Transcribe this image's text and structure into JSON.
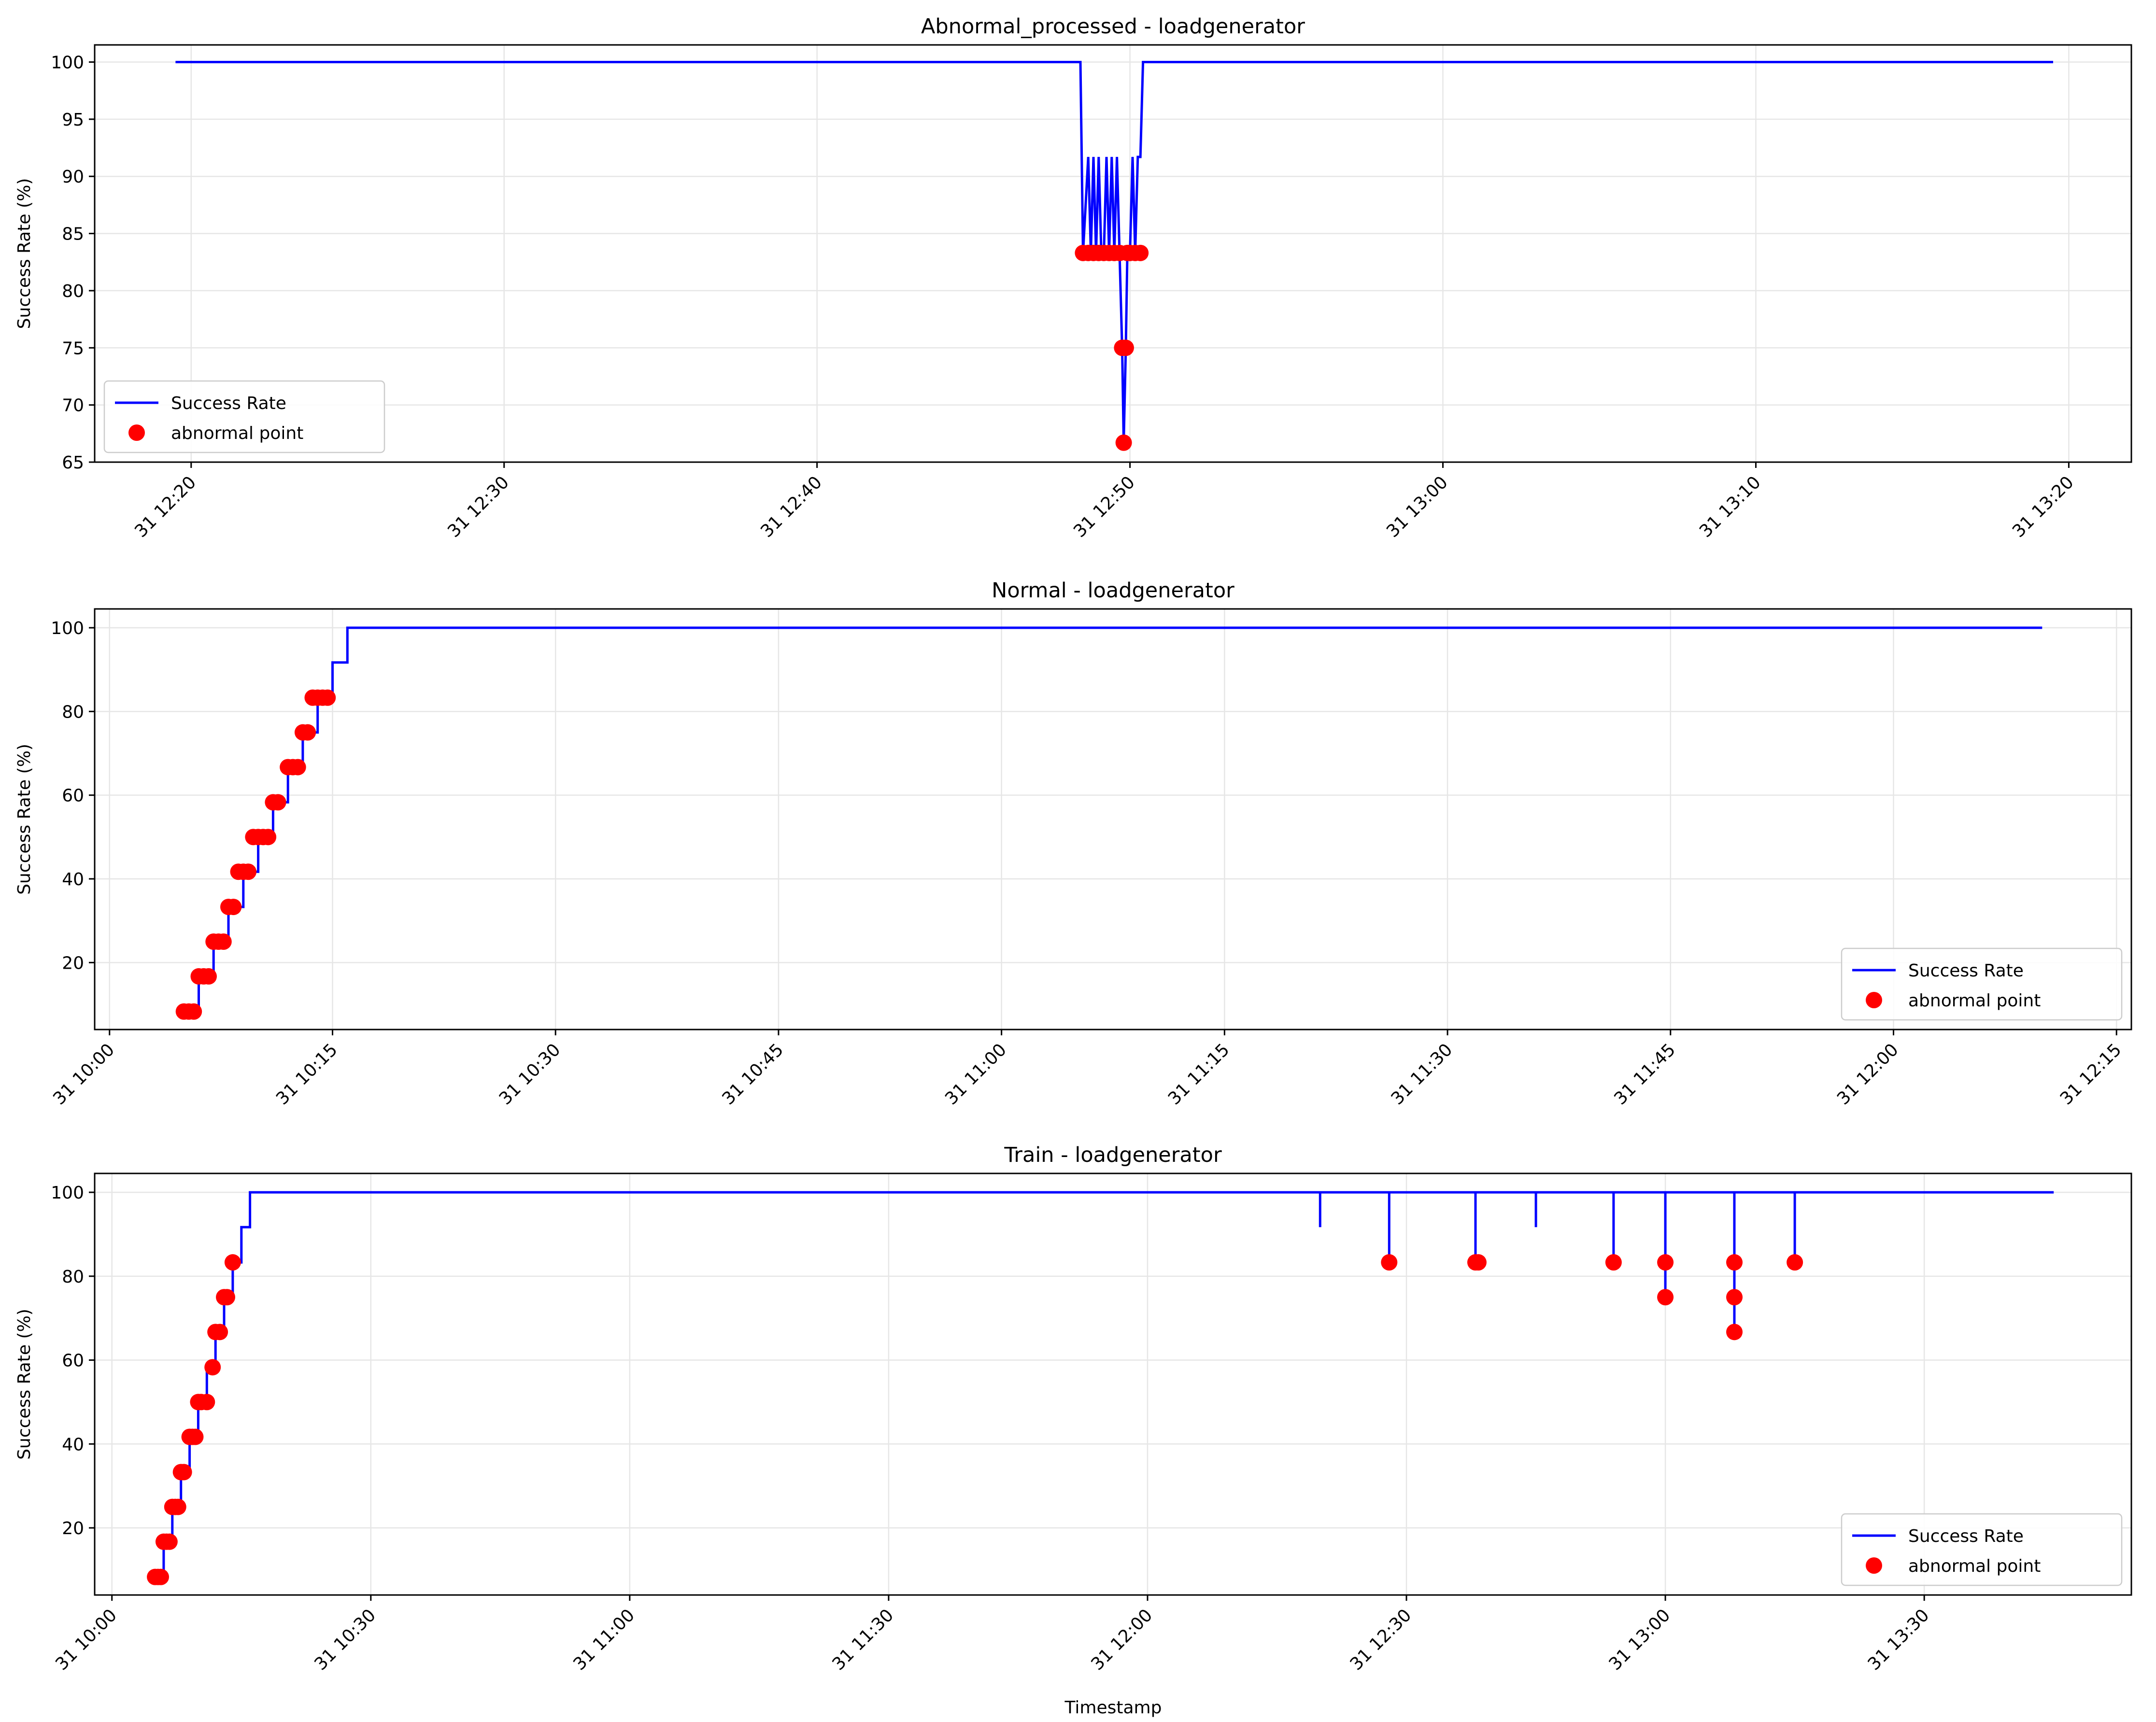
{
  "figure": {
    "background": "#ffffff"
  },
  "colors": {
    "line": "#0000ff",
    "marker": "#ff0000",
    "grid": "#e6e6e6",
    "axis": "#000000"
  },
  "xlabel": "Timestamp",
  "chart_data": [
    {
      "type": "line",
      "title": "Abnormal_processed - loadgenerator",
      "ylabel": "Success Rate (%)",
      "xlabel": "",
      "x_unit": "minutes",
      "xlim": [
        "31 12:16:55",
        "31 13:22:00"
      ],
      "ylim": [
        65,
        101.5
      ],
      "xticks": [
        {
          "t": "31 12:20",
          "label": "31 12:20"
        },
        {
          "t": "31 12:30",
          "label": "31 12:30"
        },
        {
          "t": "31 12:40",
          "label": "31 12:40"
        },
        {
          "t": "31 12:50",
          "label": "31 12:50"
        },
        {
          "t": "31 13:00",
          "label": "31 13:00"
        },
        {
          "t": "31 13:10",
          "label": "31 13:10"
        },
        {
          "t": "31 13:20",
          "label": "31 13:20"
        }
      ],
      "yticks": [
        65,
        70,
        75,
        80,
        85,
        90,
        95,
        100
      ],
      "grid": true,
      "legend": {
        "position": "lower-left",
        "entries": [
          "Success Rate",
          "abnormal point"
        ]
      },
      "series": [
        {
          "name": "Success Rate",
          "x": [
            "31 12:19:30",
            "31 12:48:25",
            "31 12:48:30",
            "31 12:48:40",
            "31 12:48:45",
            "31 12:48:50",
            "31 12:48:55",
            "31 12:49:00",
            "31 12:49:05",
            "31 12:49:10",
            "31 12:49:15",
            "31 12:49:20",
            "31 12:49:25",
            "31 12:49:30",
            "31 12:49:35",
            "31 12:49:40",
            "31 12:49:45",
            "31 12:49:48",
            "31 12:49:52",
            "31 12:49:55",
            "31 12:50:00",
            "31 12:50:05",
            "31 12:50:10",
            "31 12:50:15",
            "31 12:50:20",
            "31 12:50:25",
            "31 12:50:30",
            "31 13:19:30"
          ],
          "y": [
            100,
            100,
            83.3,
            91.7,
            83.3,
            91.7,
            83.3,
            91.7,
            83.3,
            83.3,
            91.7,
            83.3,
            91.7,
            83.3,
            91.7,
            83.3,
            75,
            66.7,
            75,
            83.3,
            83.3,
            91.7,
            83.3,
            91.7,
            91.7,
            100,
            100,
            100
          ]
        },
        {
          "name": "abnormal point",
          "x": [
            "31 12:48:30",
            "31 12:48:40",
            "31 12:48:50",
            "31 12:49:00",
            "31 12:49:10",
            "31 12:49:20",
            "31 12:49:30",
            "31 12:49:40",
            "31 12:49:45",
            "31 12:49:48",
            "31 12:49:52",
            "31 12:49:55",
            "31 12:50:00",
            "31 12:50:10",
            "31 12:50:20"
          ],
          "y": [
            83.3,
            83.3,
            83.3,
            83.3,
            83.3,
            83.3,
            83.3,
            83.3,
            75,
            66.7,
            75,
            83.3,
            83.3,
            83.3,
            83.3
          ]
        }
      ]
    },
    {
      "type": "line",
      "title": "Normal - loadgenerator",
      "ylabel": "Success Rate (%)",
      "xlabel": "",
      "x_unit": "minutes",
      "xlim": [
        "31 09:59:00",
        "31 12:16:00"
      ],
      "ylim": [
        4,
        104.5
      ],
      "xticks": [
        {
          "t": "31 10:00",
          "label": "31 10:00"
        },
        {
          "t": "31 10:15",
          "label": "31 10:15"
        },
        {
          "t": "31 10:30",
          "label": "31 10:30"
        },
        {
          "t": "31 10:45",
          "label": "31 10:45"
        },
        {
          "t": "31 11:00",
          "label": "31 11:00"
        },
        {
          "t": "31 11:15",
          "label": "31 11:15"
        },
        {
          "t": "31 11:30",
          "label": "31 11:30"
        },
        {
          "t": "31 11:45",
          "label": "31 11:45"
        },
        {
          "t": "31 12:00",
          "label": "31 12:00"
        },
        {
          "t": "31 12:15",
          "label": "31 12:15"
        }
      ],
      "yticks": [
        20,
        40,
        60,
        80,
        100
      ],
      "grid": true,
      "legend": {
        "position": "lower-right",
        "entries": [
          "Success Rate",
          "abnormal point"
        ]
      },
      "series": [
        {
          "name": "Success Rate",
          "x": [
            "31 10:05:00",
            "31 10:06:00",
            "31 10:06:00",
            "31 10:07:00",
            "31 10:07:00",
            "31 10:08:00",
            "31 10:08:00",
            "31 10:09:00",
            "31 10:09:00",
            "31 10:10:00",
            "31 10:10:00",
            "31 10:11:00",
            "31 10:11:00",
            "31 10:12:00",
            "31 10:12:00",
            "31 10:13:00",
            "31 10:13:00",
            "31 10:14:00",
            "31 10:14:00",
            "31 10:15:00",
            "31 10:15:00",
            "31 10:16:00",
            "31 10:16:00",
            "31 12:10:00"
          ],
          "y": [
            8.3,
            8.3,
            16.7,
            16.7,
            25,
            25,
            33.3,
            33.3,
            41.7,
            41.7,
            50,
            50,
            58.3,
            58.3,
            66.7,
            66.7,
            75,
            75,
            83.3,
            83.3,
            91.7,
            91.7,
            100,
            100
          ]
        },
        {
          "name": "abnormal point",
          "x": [
            "31 10:05:00",
            "31 10:05:20",
            "31 10:05:40",
            "31 10:06:00",
            "31 10:06:20",
            "31 10:06:40",
            "31 10:07:00",
            "31 10:07:20",
            "31 10:07:40",
            "31 10:08:00",
            "31 10:08:20",
            "31 10:08:40",
            "31 10:09:00",
            "31 10:09:20",
            "31 10:09:40",
            "31 10:10:00",
            "31 10:10:20",
            "31 10:10:40",
            "31 10:11:00",
            "31 10:11:20",
            "31 10:12:00",
            "31 10:12:20",
            "31 10:12:40",
            "31 10:13:00",
            "31 10:13:20",
            "31 10:13:40",
            "31 10:14:00",
            "31 10:14:20",
            "31 10:14:40"
          ],
          "y": [
            8.3,
            8.3,
            8.3,
            16.7,
            16.7,
            16.7,
            25,
            25,
            25,
            33.3,
            33.3,
            41.7,
            41.7,
            41.7,
            50,
            50,
            50,
            50,
            58.3,
            58.3,
            66.7,
            66.7,
            66.7,
            75,
            75,
            83.3,
            83.3,
            83.3,
            83.3
          ]
        }
      ]
    },
    {
      "type": "line",
      "title": "Train - loadgenerator",
      "ylabel": "Success Rate (%)",
      "xlabel": "Timestamp",
      "x_unit": "minutes",
      "xlim": [
        "31 09:58:00",
        "31 13:54:00"
      ],
      "ylim": [
        4,
        104.5
      ],
      "xticks": [
        {
          "t": "31 10:00",
          "label": "31 10:00"
        },
        {
          "t": "31 10:30",
          "label": "31 10:30"
        },
        {
          "t": "31 11:00",
          "label": "31 11:00"
        },
        {
          "t": "31 11:30",
          "label": "31 11:30"
        },
        {
          "t": "31 12:00",
          "label": "31 12:00"
        },
        {
          "t": "31 12:30",
          "label": "31 12:30"
        },
        {
          "t": "31 13:00",
          "label": "31 13:00"
        },
        {
          "t": "31 13:30",
          "label": "31 13:30"
        }
      ],
      "yticks": [
        20,
        40,
        60,
        80,
        100
      ],
      "grid": true,
      "legend": {
        "position": "lower-right",
        "entries": [
          "Success Rate",
          "abnormal point"
        ]
      },
      "series": [
        {
          "name": "Success Rate",
          "x": [
            "31 10:05:00",
            "31 10:06:00",
            "31 10:06:00",
            "31 10:07:00",
            "31 10:07:00",
            "31 10:08:00",
            "31 10:08:00",
            "31 10:09:00",
            "31 10:09:00",
            "31 10:10:00",
            "31 10:10:00",
            "31 10:11:00",
            "31 10:11:00",
            "31 10:12:00",
            "31 10:12:00",
            "31 10:13:00",
            "31 10:13:00",
            "31 10:14:00",
            "31 10:14:00",
            "31 10:15:00",
            "31 10:15:00",
            "31 10:16:00",
            "31 10:16:00",
            "31 12:20:00",
            "31 12:20:00",
            "31 12:20:00",
            "31 12:28:00",
            "31 12:28:00",
            "31 12:28:00",
            "31 12:38:00",
            "31 12:38:00",
            "31 12:38:00",
            "31 12:45:00",
            "31 12:45:00",
            "31 12:45:00",
            "31 12:54:00",
            "31 12:54:00",
            "31 12:54:00",
            "31 13:00:00",
            "31 13:00:00",
            "31 13:00:00",
            "31 13:00:00",
            "31 13:08:00",
            "31 13:08:00",
            "31 13:08:00",
            "31 13:08:00",
            "31 13:08:00",
            "31 13:15:00",
            "31 13:15:00",
            "31 13:15:00",
            "31 13:45:00"
          ],
          "y": [
            8.3,
            8.3,
            16.7,
            16.7,
            25,
            25,
            33.3,
            33.3,
            41.7,
            41.7,
            50,
            50,
            58.3,
            58.3,
            66.7,
            66.7,
            75,
            75,
            83.3,
            83.3,
            91.7,
            91.7,
            100,
            100,
            91.7,
            100,
            100,
            83.3,
            100,
            100,
            83.3,
            100,
            100,
            91.7,
            100,
            100,
            83.3,
            100,
            100,
            83.3,
            75,
            100,
            100,
            83.3,
            75,
            66.7,
            100,
            100,
            83.3,
            100,
            100
          ]
        },
        {
          "name": "abnormal point",
          "x": [
            "31 10:05:00",
            "31 10:05:20",
            "31 10:05:40",
            "31 10:06:00",
            "31 10:06:20",
            "31 10:06:40",
            "31 10:07:00",
            "31 10:07:20",
            "31 10:07:40",
            "31 10:08:00",
            "31 10:08:20",
            "31 10:09:00",
            "31 10:09:20",
            "31 10:09:40",
            "31 10:10:00",
            "31 10:10:20",
            "31 10:11:00",
            "31 10:11:40",
            "31 10:12:00",
            "31 10:12:30",
            "31 10:13:00",
            "31 10:13:20",
            "31 10:14:00",
            "31 12:28:00",
            "31 12:38:00",
            "31 12:38:20",
            "31 12:54:00",
            "31 13:00:00",
            "31 13:00:00",
            "31 13:08:00",
            "31 13:08:00",
            "31 13:08:00",
            "31 13:15:00"
          ],
          "y": [
            8.3,
            8.3,
            8.3,
            16.7,
            16.7,
            16.7,
            25,
            25,
            25,
            33.3,
            33.3,
            41.7,
            41.7,
            41.7,
            50,
            50,
            50,
            58.3,
            66.7,
            66.7,
            75,
            75,
            83.3,
            83.3,
            83.3,
            83.3,
            83.3,
            83.3,
            75,
            83.3,
            75,
            66.7,
            83.3
          ]
        }
      ]
    }
  ]
}
